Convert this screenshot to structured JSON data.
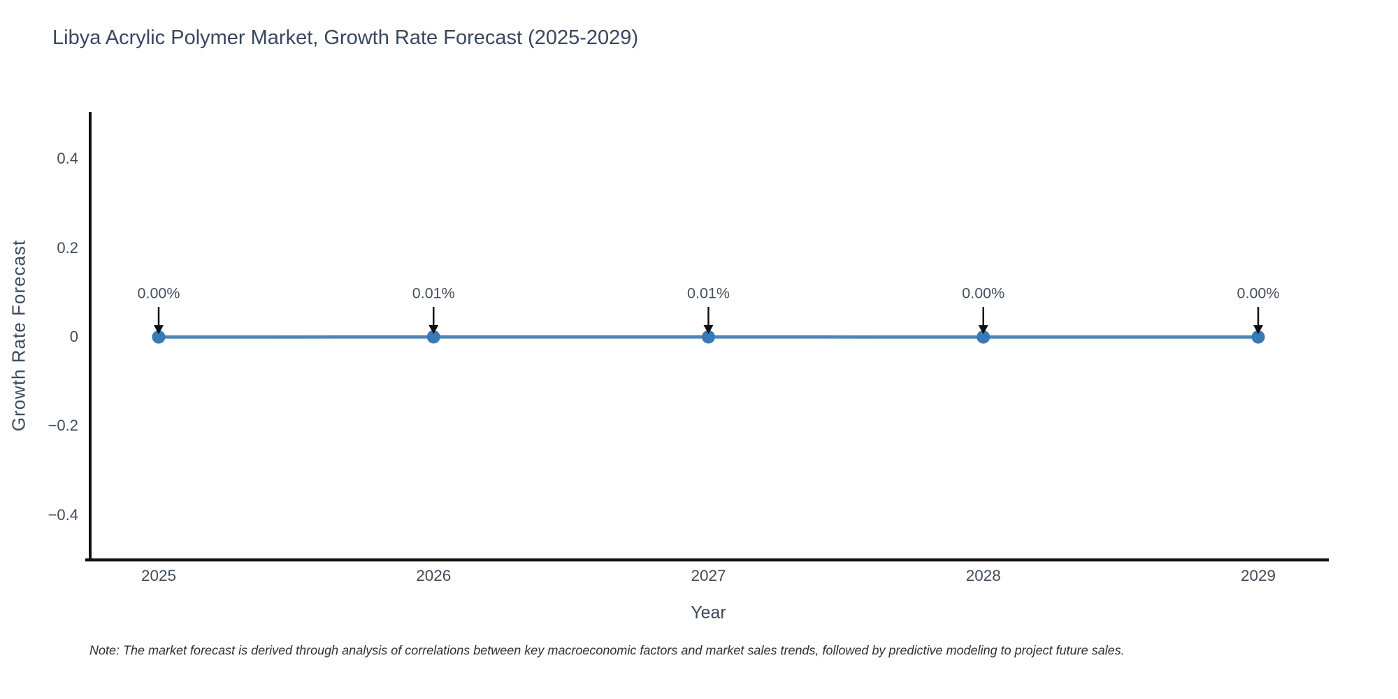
{
  "chart_data": {
    "type": "line",
    "title": "Libya Acrylic Polymer Market, Growth Rate Forecast (2025-2029)",
    "xlabel": "Year",
    "ylabel": "Growth Rate Forecast",
    "categories": [
      "2025",
      "2026",
      "2027",
      "2028",
      "2029"
    ],
    "series": [
      {
        "name": "Growth Rate Forecast",
        "values": [
          0.0,
          0.0001,
          0.0001,
          0.0,
          0.0
        ],
        "point_labels": [
          "0.00%",
          "0.01%",
          "0.01%",
          "0.00%",
          "0.00%"
        ]
      }
    ],
    "yticks": [
      0.4,
      0.2,
      0,
      -0.2,
      -0.4
    ],
    "ytick_labels": [
      "0.4",
      "0.2",
      "0",
      "−0.2",
      "−0.4"
    ],
    "ylim": [
      -0.501,
      0.506
    ],
    "grid": false,
    "legend_position": "none",
    "colors": {
      "line": "#4d86b8",
      "marker": "#3a79b8",
      "axis": "#111111",
      "arrow": "#111111"
    }
  },
  "note": "Note: The market forecast is derived through analysis of correlations between key macroeconomic factors and market sales trends, followed by predictive modeling to project future sales."
}
